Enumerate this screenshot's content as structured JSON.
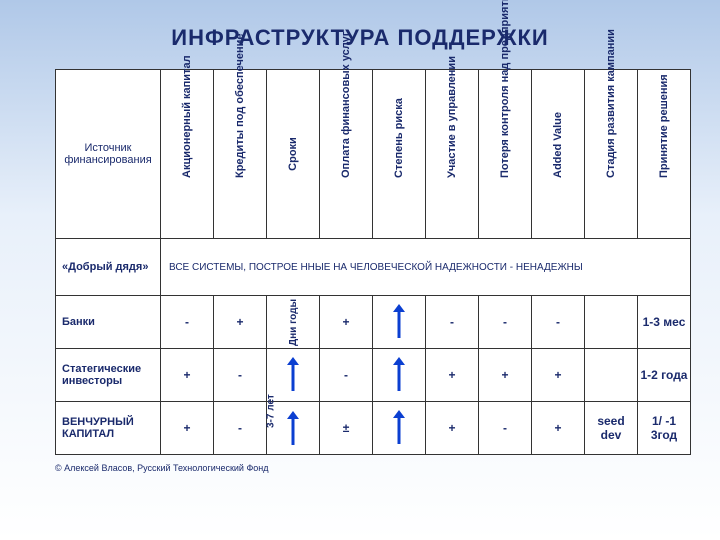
{
  "title": "ИНФРАСТРУКТУРА ПОДДЕРЖКИ",
  "title_fontsize": 22,
  "title_color": "#1a2a6c",
  "background_gradient": [
    "#b0c8e8",
    "#e8f0fa",
    "#ffffff"
  ],
  "arrow_color": "#0b3fd1",
  "table": {
    "header_row_label": "Источник финансирования",
    "columns": [
      "Акционерный капитал",
      "Кредиты под обеспечение",
      "Сроки",
      "Оплата финансовых услуг",
      "Степень риска",
      "Участие в управлении",
      "Потеря контроля над предприятием",
      "Added Value",
      "Стадия развития кампании",
      "Принятие решения"
    ],
    "rows": [
      {
        "label": "«Добрый дядя»",
        "note": "ВСЕ СИСТЕМЫ, ПОСТРОЕ               ННЫЕ НА ЧЕЛОВЕЧЕСКОЙ НАДЕЖНОСТИ      - НЕНАДЕЖНЫ",
        "cells": null
      },
      {
        "label": "Банки",
        "cells": [
          "-",
          "+",
          {
            "vtext": "Дни годы"
          },
          "+",
          "ARROW",
          "-",
          "-",
          "-",
          "",
          "1-3 мес"
        ]
      },
      {
        "label": "Статегические инвесторы",
        "cells": [
          "+",
          "-",
          "ARROW",
          "-",
          "ARROW",
          "+",
          "+",
          "+",
          "",
          "1-2 года"
        ]
      },
      {
        "label": "ВЕНЧУРНЫЙ КАПИТАЛ",
        "cells": [
          "+",
          "-",
          {
            "arrow": true,
            "vtext": "3-7 лет"
          },
          "±",
          "ARROW",
          "+",
          "-",
          "+",
          "seed dev",
          "1/   -1 3год"
        ]
      }
    ]
  },
  "copyright": "© Алексей Власов, Русский Технологический Фонд"
}
